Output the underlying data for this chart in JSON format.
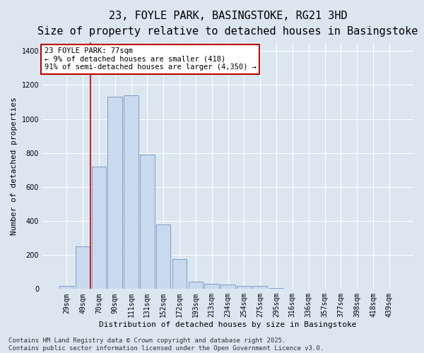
{
  "title_line1": "23, FOYLE PARK, BASINGSTOKE, RG21 3HD",
  "title_line2": "Size of property relative to detached houses in Basingstoke",
  "xlabel": "Distribution of detached houses by size in Basingstoke",
  "ylabel": "Number of detached properties",
  "categories": [
    "29sqm",
    "49sqm",
    "70sqm",
    "90sqm",
    "111sqm",
    "131sqm",
    "152sqm",
    "172sqm",
    "193sqm",
    "213sqm",
    "234sqm",
    "254sqm",
    "275sqm",
    "295sqm",
    "316sqm",
    "336sqm",
    "357sqm",
    "377sqm",
    "398sqm",
    "418sqm",
    "439sqm"
  ],
  "values": [
    18,
    250,
    720,
    1130,
    1140,
    790,
    380,
    175,
    45,
    30,
    25,
    20,
    18,
    5,
    0,
    0,
    0,
    0,
    0,
    0,
    0
  ],
  "bar_color": "#c9d9ee",
  "bar_edge_color": "#7094c0",
  "background_color": "#dce6f1",
  "plot_bg_color": "#dce6f1",
  "vline_color": "#c00000",
  "vline_x_index": 1.5,
  "annotation_text": "23 FOYLE PARK: 77sqm\n← 9% of detached houses are smaller (418)\n91% of semi-detached houses are larger (4,350) →",
  "annotation_box_color": "#ffffff",
  "annotation_box_edge": "#c00000",
  "ylim": [
    0,
    1450
  ],
  "yticks": [
    0,
    200,
    400,
    600,
    800,
    1000,
    1200,
    1400
  ],
  "footer": "Contains HM Land Registry data © Crown copyright and database right 2025.\nContains public sector information licensed under the Open Government Licence v3.0.",
  "title_fontsize": 11,
  "subtitle_fontsize": 9,
  "axis_label_fontsize": 8,
  "tick_fontsize": 7,
  "annotation_fontsize": 7.5,
  "footer_fontsize": 6.5
}
